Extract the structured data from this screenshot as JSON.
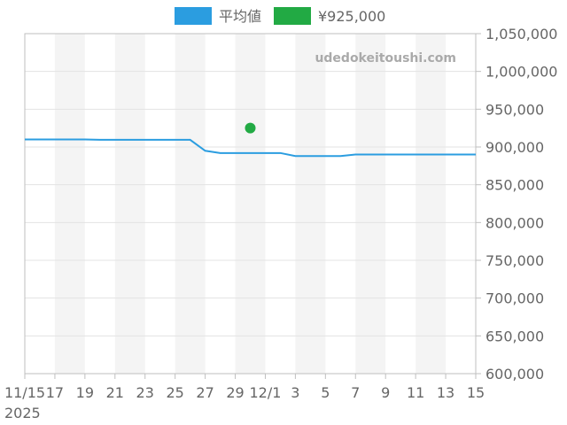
{
  "chart_data": {
    "type": "line",
    "watermark": "udedokeitoushi.com",
    "x": [
      "2025-11-15",
      "2025-11-16",
      "2025-11-17",
      "2025-11-18",
      "2025-11-19",
      "2025-11-20",
      "2025-11-21",
      "2025-11-22",
      "2025-11-23",
      "2025-11-24",
      "2025-11-25",
      "2025-11-26",
      "2025-11-27",
      "2025-11-28",
      "2025-11-29",
      "2025-11-30",
      "2025-12-01",
      "2025-12-02",
      "2025-12-03",
      "2025-12-04",
      "2025-12-05",
      "2025-12-06",
      "2025-12-07",
      "2025-12-08",
      "2025-12-09",
      "2025-12-10",
      "2025-12-11",
      "2025-12-12",
      "2025-12-13",
      "2025-12-14",
      "2025-12-15"
    ],
    "x_tick_labels": [
      "11/15",
      "17",
      "19",
      "21",
      "23",
      "25",
      "27",
      "29",
      "12/1",
      "3",
      "5",
      "7",
      "9",
      "11",
      "13",
      "15"
    ],
    "x_year_label": "2025",
    "y_tick_labels": [
      "600,000",
      "650,000",
      "700,000",
      "750,000",
      "800,000",
      "850,000",
      "900,000",
      "950,000",
      "1,000,000",
      "1,050,000"
    ],
    "ylim": [
      600000,
      1050000
    ],
    "series": [
      {
        "name": "平均値",
        "kind": "line",
        "color": "#2b9de0",
        "values": [
          910000,
          910000,
          910000,
          910000,
          910000,
          909500,
          909500,
          909500,
          909500,
          909500,
          909500,
          909500,
          895000,
          892000,
          892000,
          892000,
          892000,
          892000,
          888000,
          888000,
          888000,
          888000,
          890000,
          890000,
          890000,
          890000,
          890000,
          890000,
          890000,
          890000,
          890000
        ]
      },
      {
        "name": "¥925,000",
        "kind": "scatter",
        "color": "#22aa44",
        "points": [
          {
            "x": "2025-11-30",
            "y": 925000
          }
        ]
      }
    ],
    "legend_position": "top",
    "grid": true,
    "band_color": "#f4f4f4",
    "grid_color": "#e3e3e3",
    "axis_color": "#bfbfbf"
  }
}
